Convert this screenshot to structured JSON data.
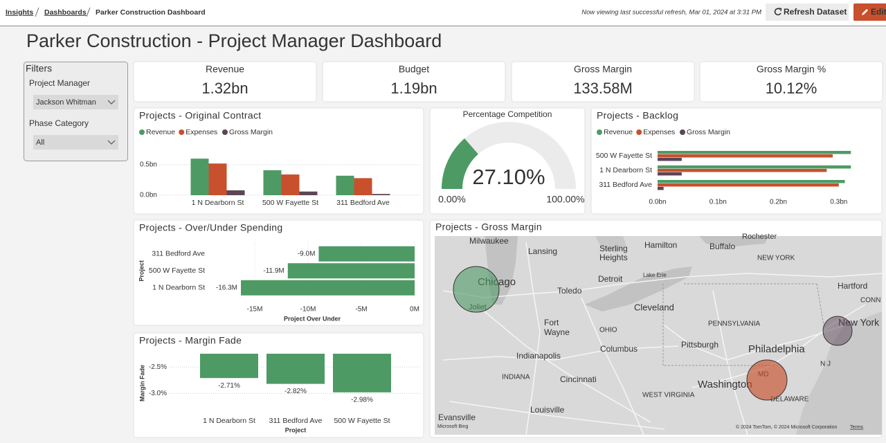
{
  "header": {
    "breadcrumb": [
      "Insights",
      "Dashboards",
      "Parker Construction Dashboard"
    ],
    "refresh_note": "Now viewing last successful refresh, Mar 01, 2024 at 3:31 PM",
    "refresh_button": "Refresh Dataset",
    "edit_button": "Edit"
  },
  "title": "Parker Construction - Project Manager Dashboard",
  "filters": {
    "title": "Filters",
    "fields": [
      {
        "label": "Project Manager",
        "value": "Jackson Whitman"
      },
      {
        "label": "Phase Category",
        "value": "All"
      }
    ]
  },
  "kpis": [
    {
      "label": "Revenue",
      "value": "1.32bn"
    },
    {
      "label": "Budget",
      "value": "1.19bn"
    },
    {
      "label": "Gross Margin",
      "value": "133.58M"
    },
    {
      "label": "Gross Margin %",
      "value": "10.12%"
    }
  ],
  "chart_data": [
    {
      "type": "bar",
      "title": "Projects - Original Contract",
      "categories": [
        "1 N Dearborn St",
        "500 W Fayette St",
        "311 Bedford Ave"
      ],
      "series": [
        {
          "name": "Revenue",
          "color": "#4e9a65",
          "values": [
            0.6,
            0.41,
            0.32
          ]
        },
        {
          "name": "Expenses",
          "color": "#c8502d",
          "values": [
            0.52,
            0.34,
            0.28
          ]
        },
        {
          "name": "Gross Margin",
          "color": "#5c4557",
          "values": [
            0.08,
            0.06,
            0.02
          ]
        }
      ],
      "ylim": [
        0,
        0.75
      ],
      "yticks": [
        {
          "value": 0,
          "label": "0.0bn"
        },
        {
          "value": 0.5,
          "label": "0.5bn"
        }
      ],
      "grid": true,
      "legend": "top-left"
    },
    {
      "type": "gauge",
      "title": "Percentage Competition",
      "values": [
        27.1
      ],
      "value_labels": [
        "27.10%"
      ],
      "ylim": [
        0,
        100
      ],
      "yticks": [
        {
          "value": 0,
          "label": "0.00%"
        },
        {
          "value": 100,
          "label": "100.00%"
        }
      ],
      "color": "#4e9a65",
      "track_color": "#ebebeb"
    },
    {
      "type": "hbar",
      "title": "Projects - Backlog",
      "categories": [
        "500 W Fayette St",
        "1 N Dearborn St",
        "311 Bedford Ave"
      ],
      "series": [
        {
          "name": "Revenue",
          "color": "#4e9a65",
          "values": [
            0.32,
            0.32,
            0.31
          ]
        },
        {
          "name": "Expenses",
          "color": "#c8502d",
          "values": [
            0.29,
            0.28,
            0.3
          ]
        },
        {
          "name": "Gross Margin",
          "color": "#5c4557",
          "values": [
            0.04,
            0.04,
            0.01
          ]
        }
      ],
      "xlim": [
        0,
        0.33
      ],
      "xticks": [
        {
          "value": 0,
          "label": "0.0bn"
        },
        {
          "value": 0.1,
          "label": "0.1bn"
        },
        {
          "value": 0.2,
          "label": "0.2bn"
        },
        {
          "value": 0.3,
          "label": "0.3bn"
        }
      ],
      "legend": "top-left"
    },
    {
      "type": "hbar",
      "title": "Projects - Over/Under Spending",
      "categories": [
        "311 Bedford Ave",
        "500 W Fayette St",
        "1 N Dearborn St"
      ],
      "values": [
        -9.0,
        -11.9,
        -16.3
      ],
      "value_labels": [
        "-9.0M",
        "-11.9M",
        "-16.3M"
      ],
      "color": "#4e9a65",
      "xlim": [
        -16.6,
        0
      ],
      "xticks": [
        {
          "value": -15,
          "label": "-15M"
        },
        {
          "value": -10,
          "label": "-10M"
        },
        {
          "value": -5,
          "label": "-5M"
        },
        {
          "value": 0,
          "label": "0M"
        }
      ],
      "xlabel": "Project Over Under",
      "ylabel": "Project",
      "grid": true
    },
    {
      "type": "bar",
      "title": "Projects - Margin Fade",
      "categories": [
        "1 N Dearborn St",
        "311 Bedford Ave",
        "500 W Fayette St"
      ],
      "values": [
        -2.71,
        -2.82,
        -2.98
      ],
      "value_labels": [
        "-2.71%",
        "-2.82%",
        "-2.98%"
      ],
      "color": "#4e9a65",
      "ylim": [
        -3.1,
        -2.25
      ],
      "yticks": [
        {
          "value": -2.5,
          "label": "-2.5%"
        },
        {
          "value": -3,
          "label": "-3.0%"
        }
      ],
      "xlabel": "Project",
      "ylabel": "Margin Fade",
      "grid": true
    }
  ],
  "map": {
    "title": "Projects - Gross Margin",
    "labels": [
      "Milwaukee",
      "Lansing",
      "Hamilton",
      "Buffalo",
      "Rochester",
      "Sterling",
      "Heights",
      "Detroit",
      "Lake Erie",
      "NEW YORK",
      "Chicago",
      "Toledo",
      "Cleveland",
      "Hartford",
      "CONN",
      "Joliet",
      "Fort",
      "Wayne",
      "OHIO",
      "PENNSYLVANIA",
      "New York",
      "Columbus",
      "Pittsburgh",
      "Philadelphia",
      "Indianapolis",
      "N J",
      "INDIANA",
      "Cincinnati",
      "Washington",
      "MD",
      "WEST VIRGINIA",
      "DELAWARE",
      "Louisville",
      "Evansville"
    ],
    "logo": "Microsoft Bing",
    "attribution": "© 2024 TomTom, © 2024 Microsoft Corporation",
    "terms": "Terms"
  }
}
